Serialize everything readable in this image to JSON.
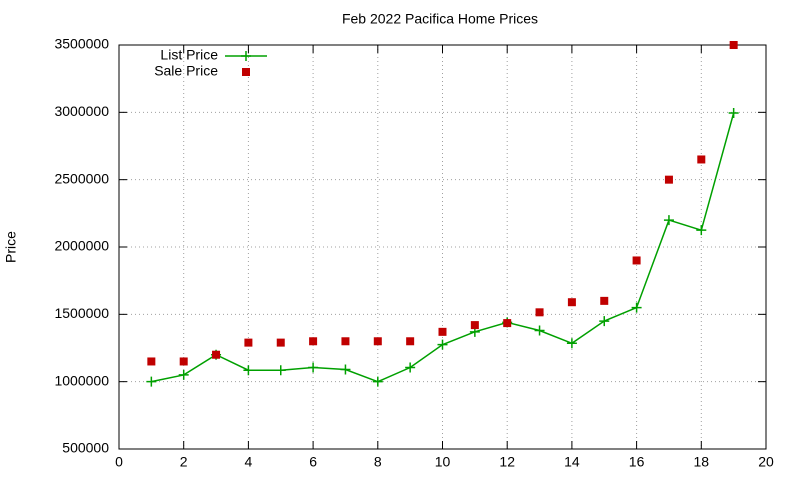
{
  "chart_data": {
    "type": "line",
    "title": "Feb 2022 Pacifica Home Prices",
    "y_label": "Price",
    "x": [
      1,
      2,
      3,
      4,
      5,
      6,
      7,
      8,
      9,
      10,
      11,
      12,
      13,
      14,
      15,
      16,
      17,
      18,
      19
    ],
    "series": [
      {
        "name": "List Price",
        "color": "#00a000",
        "mode": "lines+markers",
        "marker": "plus",
        "values": [
          1000000,
          1050000,
          1200000,
          1085000,
          1085000,
          1105000,
          1090000,
          1000000,
          1105000,
          1275000,
          1370000,
          1440000,
          1380000,
          1285000,
          1450000,
          1550000,
          2200000,
          2125000,
          2995000
        ]
      },
      {
        "name": "Sale Price",
        "color": "#c00000",
        "mode": "markers",
        "marker": "square",
        "values": [
          1150000,
          1150000,
          1200000,
          1290000,
          1290000,
          1300000,
          1300000,
          1300000,
          1300000,
          1370000,
          1420000,
          1435000,
          1515000,
          1590000,
          1600000,
          1900000,
          2500000,
          2650000,
          3500000
        ]
      }
    ],
    "xlim": [
      0,
      20
    ],
    "xticks": [
      0,
      2,
      4,
      6,
      8,
      10,
      12,
      14,
      16,
      18,
      20
    ],
    "ylim": [
      500000,
      3500000
    ],
    "yticks": [
      500000,
      1000000,
      1500000,
      2000000,
      2500000,
      3000000,
      3500000
    ],
    "grid": true,
    "legend": "top-left"
  }
}
